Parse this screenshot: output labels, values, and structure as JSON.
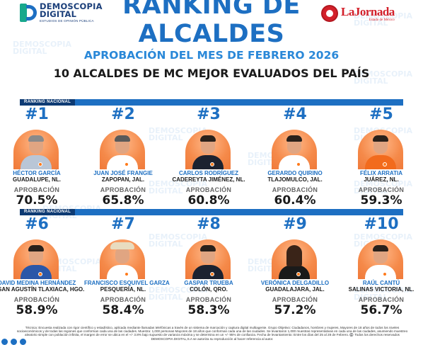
{
  "header": {
    "brand_left_line1": "DEMOSCOPIA",
    "brand_left_line2": "DIGITAL",
    "brand_left_tagline": "ESTUDIOS DE OPINIÓN PÚBLICA",
    "brand_right_name": "LaJornada",
    "brand_right_sub": "Estado de México",
    "title_line1": "RANKING DE",
    "title_line2": "ALCALDES",
    "subtitle": "APROBACIÓN DEL MES DE FEBRERO 2026",
    "headline": "10 ALCALDES DE MC MEJOR EVALUADOS DEL PAÍS"
  },
  "section_label": "RANKING NACIONAL",
  "approval_label": "APROBACIÓN",
  "mayors": [
    {
      "rank": "#1",
      "name": "HÉCTOR GARCÍA",
      "place": "GUADALUPE, NL.",
      "approval": "70.5%"
    },
    {
      "rank": "#2",
      "name": "JUAN JOSÉ FRANGIE",
      "place": "ZAPOPAN, JAL.",
      "approval": "65.8%"
    },
    {
      "rank": "#3",
      "name": "CARLOS RODRÍGUEZ",
      "place": "CADEREYTA JIMÉNEZ, NL.",
      "approval": "60.8%"
    },
    {
      "rank": "#4",
      "name": "GERARDO QUIRINO",
      "place": "TLAJOMULCO, JAL.",
      "approval": "60.4%"
    },
    {
      "rank": "#5",
      "name": "FÉLIX ARRATIA",
      "place": "JUÁREZ, NL.",
      "approval": "59.3%"
    },
    {
      "rank": "#6",
      "name": "DAVID MEDINA HERNÁNDEZ",
      "place": "SAN AGUSTÍN TLAXIACA, HGO.",
      "approval": "58.9%"
    },
    {
      "rank": "#7",
      "name": "FRANCISCO ESQUIVEL GARZA",
      "place": "PESQUERÍA, NL.",
      "approval": "58.4%"
    },
    {
      "rank": "#8",
      "name": "GASPAR TRUEBA",
      "place": "COLÓN, QRO.",
      "approval": "58.3%"
    },
    {
      "rank": "#9",
      "name": "VERÓNICA DELGADILLO",
      "place": "GUADALAJARA, JAL.",
      "approval": "57.2%"
    },
    {
      "rank": "#10",
      "name": "RAÚL CANTÚ",
      "place": "SALINAS VICTORIA, NL.",
      "approval": "56.7%"
    }
  ],
  "footer_text": "Técnica: Encuesta realizada con rigor científico y estadístico, aplicada mediante llamadas telefónicas a través de un sistema de marcación y captura digital multiagente. Grupo Objetivo: Ciudadanos, hombres y mujeres, Mayores de 18 años de todos los niveles socioeconómicos y de todas las regiones que conforman cada una de las ciudades. Muestra: 1,000 personas Mayores de 18 años que conforman cada una de las ciudades. Se levantaron 1,000 muestras representativas en cada una de las ciudades, asumiendo muestreo aleatorio simple con población infinita, el margen de error se ubica en el +/- 3.8% bajo supuesto de varianza máxima y se determina en un +/- 95% de confianza. Fecha de levantamiento: Entre los días del 25 al 28 de Febrero. ©️ Todos los derechos reservados DEMOSCOPIA DIGITAL,S.A se autoriza su reproducción al hacer referencia al autor.",
  "colors": {
    "primary_blue": "#1d6fc2",
    "dark_blue": "#0d3a73",
    "accent_orange": "#f58a4a",
    "brand_red": "#d3202a"
  }
}
